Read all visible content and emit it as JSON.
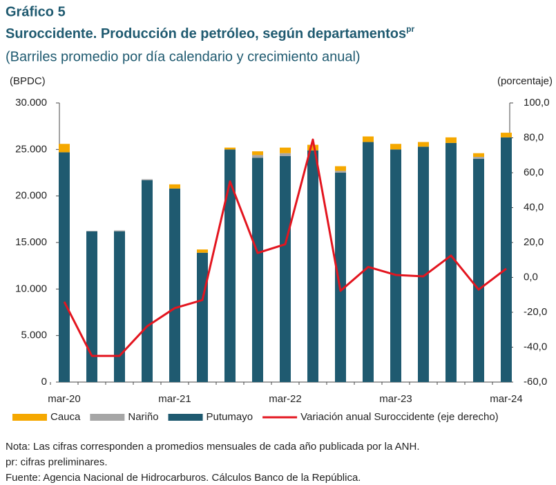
{
  "chart_data": {
    "type": "bar",
    "stacked": true,
    "heading": "Gráfico 5",
    "title": "Suroccidente. Producción de petróleo, según departamentos",
    "title_superscript": "pr",
    "subtitle": "(Barriles promedio por día calendario y crecimiento anual)",
    "ylabel": "(BPDC)",
    "y2label": "(porcentaje)",
    "categories": [
      "mar-20",
      null,
      null,
      null,
      "mar-21",
      null,
      null,
      null,
      "mar-22",
      null,
      null,
      null,
      "mar-23",
      null,
      null,
      null,
      "mar-24"
    ],
    "series": [
      {
        "name": "Cauca",
        "type": "bar",
        "color": "#f5a800",
        "values": [
          900,
          0,
          0,
          0,
          450,
          350,
          200,
          400,
          600,
          600,
          500,
          600,
          600,
          500,
          600,
          400,
          500
        ]
      },
      {
        "name": "Nariño",
        "type": "bar",
        "color": "#a6a6a6",
        "values": [
          0,
          50,
          100,
          100,
          0,
          0,
          0,
          300,
          300,
          0,
          200,
          0,
          0,
          0,
          0,
          200,
          0
        ]
      },
      {
        "name": "Putumayo",
        "type": "bar",
        "color": "#1f5a70",
        "values": [
          24700,
          16200,
          16200,
          21700,
          20800,
          13900,
          25000,
          24100,
          24300,
          24900,
          22500,
          25800,
          25000,
          25300,
          25700,
          24000,
          26300
        ]
      },
      {
        "name": "Variación anual Suroccidente (eje derecho)",
        "type": "line",
        "axis": "y2",
        "color": "#e3151f",
        "values": [
          -14,
          -45,
          -45,
          -28,
          -17.6,
          -13,
          55,
          14,
          19,
          79,
          -7.7,
          6,
          1.4,
          0.6,
          12.5,
          -7,
          5
        ]
      }
    ],
    "ylim": [
      0,
      30000
    ],
    "yticks": [
      0,
      {
        "value": 5000,
        "label": "5.000"
      },
      {
        "value": 10000,
        "label": "10.000"
      },
      {
        "value": 15000,
        "label": "15.000"
      },
      {
        "value": 20000,
        "label": "20.000"
      },
      {
        "value": 25000,
        "label": "25.000"
      },
      {
        "value": 30000,
        "label": "30.000"
      }
    ],
    "y2lim": [
      -60,
      100
    ],
    "y2ticks": [
      {
        "value": -60,
        "label": "-60,0"
      },
      {
        "value": -40,
        "label": "-40,0"
      },
      {
        "value": -20,
        "label": "-20,0"
      },
      {
        "value": 0,
        "label": "0,0"
      },
      {
        "value": 20,
        "label": "20,0"
      },
      {
        "value": 40,
        "label": "40,0"
      },
      {
        "value": 60,
        "label": "60,0"
      },
      {
        "value": 80,
        "label": "80,0"
      },
      {
        "value": 100,
        "label": "100,0"
      }
    ],
    "notes": [
      "Nota: Las cifras corresponden a promedios mensuales de cada año publicada por la ANH.",
      "pr: cifras preliminares.",
      "Fuente: Agencia Nacional de Hidrocarburos. Cálculos Banco de la República."
    ]
  }
}
